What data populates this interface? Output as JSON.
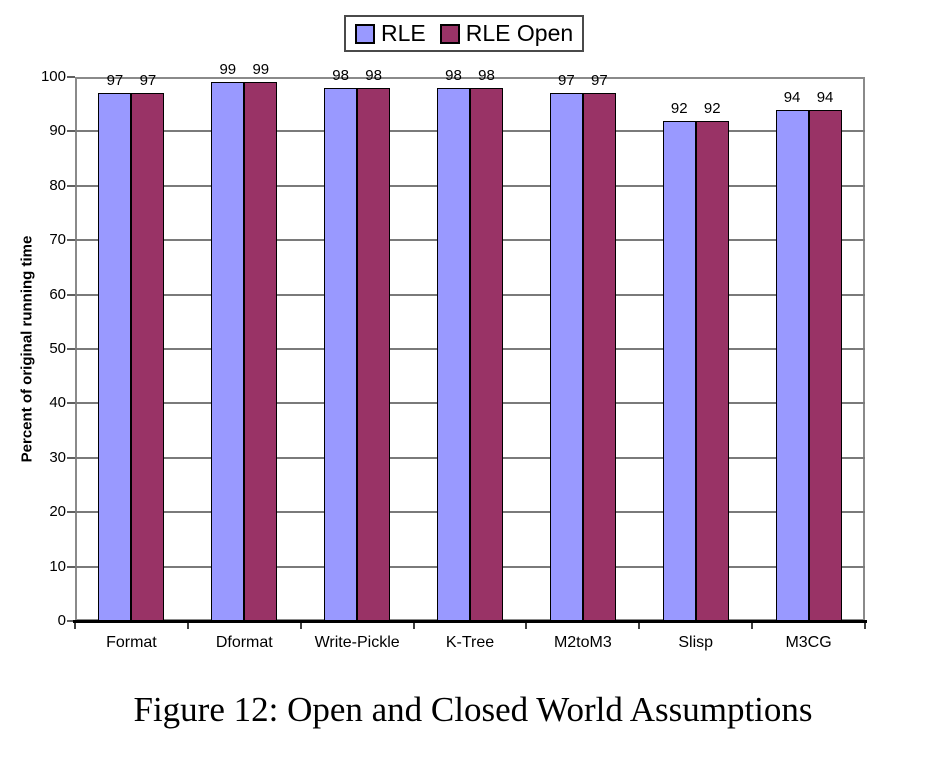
{
  "chart_data": {
    "type": "bar",
    "title": "",
    "categories": [
      "Format",
      "Dformat",
      "Write-Pickle",
      "K-Tree",
      "M2toM3",
      "Slisp",
      "M3CG"
    ],
    "series": [
      {
        "name": "RLE",
        "color": "#9999FF",
        "values": [
          97,
          99,
          98,
          98,
          97,
          92,
          94
        ]
      },
      {
        "name": "RLE Open",
        "color": "#993366",
        "values": [
          97,
          99,
          98,
          98,
          97,
          92,
          94
        ]
      }
    ],
    "xlabel": "",
    "ylabel": "Percent of original running time",
    "ylim": [
      0,
      100
    ],
    "ytick_step": 10,
    "grid": "horizontal",
    "legend_position": "top-center",
    "data_labels": true
  },
  "caption": "Figure 12: Open and Closed World Assumptions",
  "colors": {
    "background": "#ffffff",
    "gridline": "#7a7a7a",
    "plot_border": "#8a8a8a",
    "baseline": "#000000",
    "bar_border": "#000000",
    "text": "#000000"
  }
}
